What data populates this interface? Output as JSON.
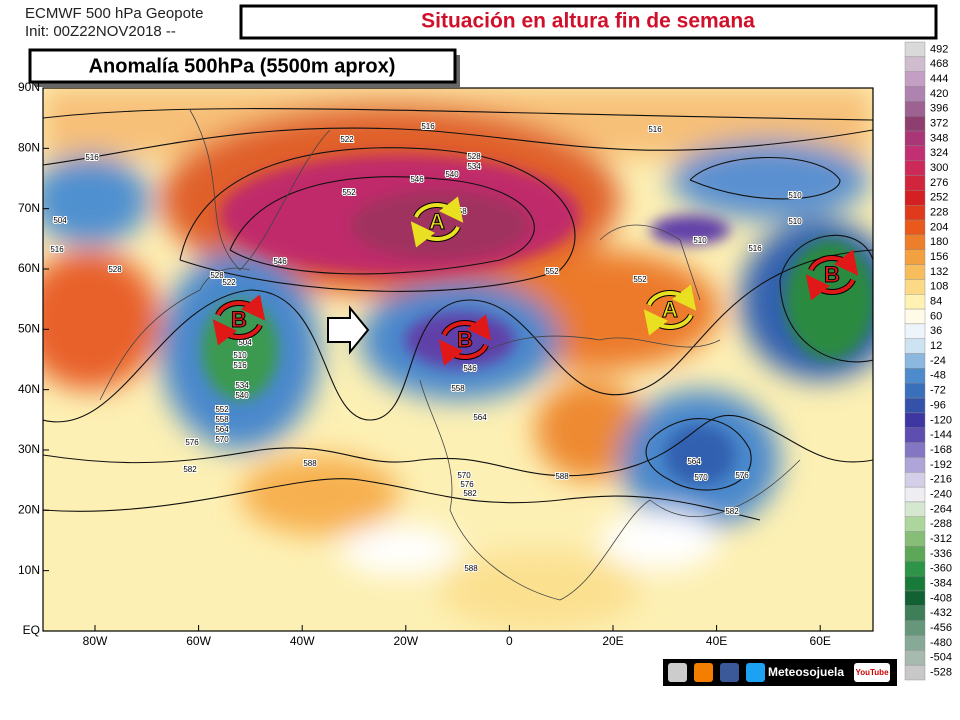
{
  "header": {
    "model_line": "ECMWF 500 hPa Geopote",
    "init_line": "Init: 00Z22NOV2018 --",
    "title": "Situación en altura fin de semana",
    "subtitle": "Anomalía 500hPa (5500m aprox)"
  },
  "map": {
    "lat_labels": [
      "90N",
      "80N",
      "70N",
      "60N",
      "50N",
      "40N",
      "30N",
      "20N",
      "10N",
      "EQ"
    ],
    "lon_labels": [
      "80W",
      "60W",
      "40W",
      "20W",
      "0",
      "20E",
      "40E",
      "60E"
    ],
    "centers": [
      "A",
      "B",
      "B",
      "A",
      "B"
    ],
    "contour_labels": [
      516,
      522,
      516,
      516,
      528,
      534,
      540,
      546,
      552,
      558,
      504,
      516,
      528,
      546,
      552,
      552,
      510,
      510,
      510,
      516,
      528,
      522,
      504,
      510,
      516,
      534,
      540,
      558,
      564,
      546,
      576,
      582,
      588,
      570,
      576,
      582,
      588,
      564,
      570,
      576,
      582,
      588,
      552,
      558,
      564,
      570
    ]
  },
  "colorbar": {
    "values": [
      492,
      468,
      444,
      420,
      396,
      372,
      348,
      324,
      300,
      276,
      252,
      228,
      204,
      180,
      156,
      132,
      108,
      84,
      60,
      36,
      12,
      -24,
      -48,
      -72,
      -96,
      -120,
      -144,
      -168,
      -192,
      -216,
      -240,
      -264,
      -288,
      -312,
      -336,
      -360,
      -384,
      -408,
      -432,
      -456,
      -480,
      -504,
      -528
    ]
  },
  "footer": {
    "brand": "Meteosojuela",
    "youtube": "YouTube"
  }
}
